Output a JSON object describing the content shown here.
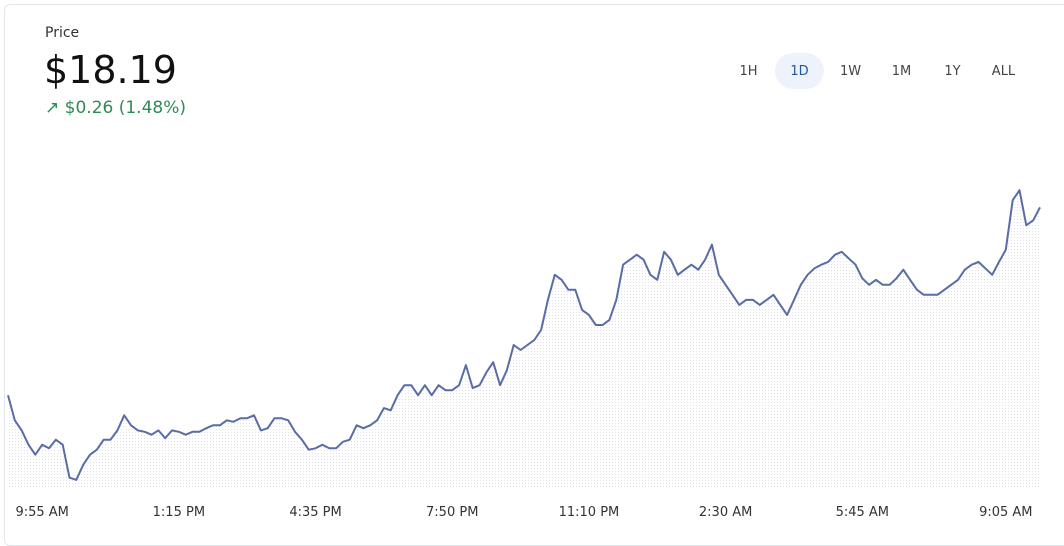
{
  "header": {
    "label": "Price",
    "price": "$18.19",
    "change": "$0.26 (1.48%)"
  },
  "ranges": [
    "1H",
    "1D",
    "1W",
    "1M",
    "1Y",
    "ALL"
  ],
  "active_range": "1D",
  "chart_data": {
    "type": "line",
    "color": "#5a6ca6",
    "ylim": [
      17.8,
      18.27
    ],
    "categories": [
      null,
      null,
      null,
      null,
      null,
      "9:55 AM",
      null,
      null,
      null,
      null,
      null,
      null,
      null,
      null,
      null,
      null,
      null,
      null,
      null,
      null,
      null,
      null,
      null,
      null,
      null,
      "1:15 PM",
      null,
      null,
      null,
      null,
      null,
      null,
      null,
      null,
      null,
      null,
      null,
      null,
      null,
      null,
      null,
      null,
      null,
      null,
      null,
      "4:35 PM",
      null,
      null,
      null,
      null,
      null,
      null,
      null,
      null,
      null,
      null,
      null,
      null,
      null,
      null,
      null,
      null,
      null,
      null,
      null,
      "7:50 PM",
      null,
      null,
      null,
      null,
      null,
      null,
      null,
      null,
      null,
      null,
      null,
      null,
      null,
      null,
      null,
      null,
      null,
      null,
      null,
      "11:10 PM",
      null,
      null,
      null,
      null,
      null,
      null,
      null,
      null,
      null,
      null,
      null,
      null,
      null,
      null,
      null,
      null,
      null,
      null,
      null,
      "2:30 AM",
      null,
      null,
      null,
      null,
      null,
      null,
      null,
      null,
      null,
      null,
      null,
      null,
      null,
      null,
      null,
      null,
      null,
      null,
      null,
      "5:45 AM",
      null,
      null,
      null,
      null,
      null,
      null,
      null,
      null,
      null,
      null,
      null,
      null,
      null,
      null,
      null,
      null,
      null,
      null,
      null,
      null,
      "9:05 AM",
      null,
      null,
      null,
      null,
      null
    ],
    "values": [
      17.928,
      17.893,
      17.879,
      17.859,
      17.845,
      17.859,
      17.854,
      17.866,
      17.859,
      17.813,
      17.81,
      17.831,
      17.845,
      17.852,
      17.866,
      17.866,
      17.879,
      17.9,
      17.886,
      17.879,
      17.877,
      17.873,
      17.879,
      17.868,
      17.879,
      17.877,
      17.873,
      17.877,
      17.877,
      17.882,
      17.886,
      17.886,
      17.893,
      17.891,
      17.896,
      17.896,
      17.9,
      17.879,
      17.882,
      17.896,
      17.896,
      17.893,
      17.877,
      17.866,
      17.852,
      17.854,
      17.859,
      17.854,
      17.854,
      17.863,
      17.866,
      17.886,
      17.882,
      17.886,
      17.893,
      17.91,
      17.907,
      17.928,
      17.942,
      17.942,
      17.928,
      17.942,
      17.928,
      17.942,
      17.935,
      17.935,
      17.942,
      17.97,
      17.938,
      17.942,
      17.96,
      17.974,
      17.942,
      17.963,
      17.998,
      17.991,
      17.998,
      18.005,
      18.019,
      18.061,
      18.096,
      18.089,
      18.075,
      18.075,
      18.047,
      18.04,
      18.026,
      18.026,
      18.033,
      18.061,
      18.11,
      18.117,
      18.124,
      18.117,
      18.096,
      18.089,
      18.128,
      18.117,
      18.096,
      18.103,
      18.11,
      18.103,
      18.117,
      18.138,
      18.096,
      18.082,
      18.068,
      18.054,
      18.061,
      18.061,
      18.054,
      18.061,
      18.068,
      18.054,
      18.04,
      18.061,
      18.082,
      18.096,
      18.105,
      18.11,
      18.114,
      18.124,
      18.128,
      18.119,
      18.11,
      18.091,
      18.082,
      18.089,
      18.082,
      18.082,
      18.091,
      18.103,
      18.089,
      18.075,
      18.068,
      18.068,
      18.068,
      18.075,
      18.082,
      18.089,
      18.103,
      18.11,
      18.114,
      18.105,
      18.096,
      18.114,
      18.131,
      18.2,
      18.214,
      18.165,
      18.172,
      18.19
    ]
  }
}
